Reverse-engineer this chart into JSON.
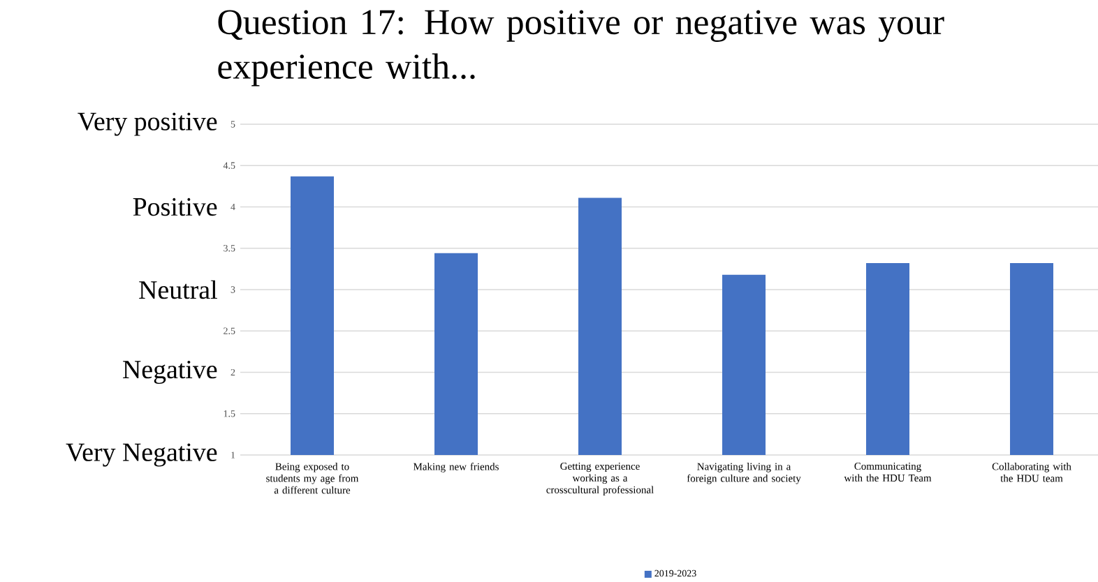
{
  "chart_data": {
    "type": "bar",
    "title": "Question 17: How positive or negative was your experience with...",
    "categories": [
      "Being exposed to students my age from a different culture",
      "Making new friends",
      "Getting experience working as a crosscultural professional",
      "Navigating living in a foreign culture and society",
      "Communicating with the HDU Team",
      "Collaborating with the HDU team"
    ],
    "series": [
      {
        "name": "2019-2023",
        "color": "#4472c4",
        "values": [
          4.37,
          3.44,
          4.11,
          3.18,
          3.32,
          3.32
        ]
      }
    ],
    "ylim": [
      1,
      5
    ],
    "yticks": [
      1,
      1.5,
      2,
      2.5,
      3,
      3.5,
      4,
      4.5,
      5
    ],
    "annotations": [
      "Very positive",
      "Positive",
      "Neutral",
      "Negative",
      "Very Negative"
    ],
    "grid": "y",
    "legend": "bottom"
  }
}
